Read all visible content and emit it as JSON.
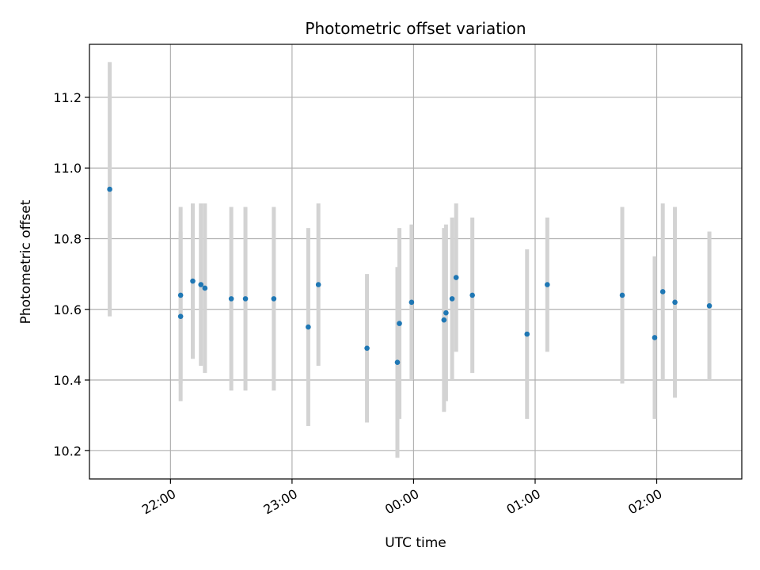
{
  "chart_data": {
    "type": "scatter",
    "title": "Photometric offset variation",
    "xlabel": "UTC time",
    "ylabel": "Photometric offset",
    "grid": true,
    "xlim": [
      "21:20",
      "02:42"
    ],
    "ylim": [
      10.12,
      11.35
    ],
    "xticks": [
      "22:00",
      "23:00",
      "00:00",
      "01:00",
      "02:00"
    ],
    "yticks": [
      "10.2",
      "10.4",
      "10.6",
      "10.8",
      "11.0",
      "11.2"
    ],
    "point_color": "#1f77b4",
    "errorbar_color": "#d3d3d3",
    "points": [
      {
        "x": "21:30",
        "y": 10.94,
        "err": 0.36
      },
      {
        "x": "22:05",
        "y": 10.58,
        "err": 0.24
      },
      {
        "x": "22:05",
        "y": 10.64,
        "err": 0.25
      },
      {
        "x": "22:11",
        "y": 10.68,
        "err": 0.22
      },
      {
        "x": "22:15",
        "y": 10.67,
        "err": 0.23
      },
      {
        "x": "22:17",
        "y": 10.66,
        "err": 0.24
      },
      {
        "x": "22:30",
        "y": 10.63,
        "err": 0.26
      },
      {
        "x": "22:37",
        "y": 10.63,
        "err": 0.26
      },
      {
        "x": "22:51",
        "y": 10.63,
        "err": 0.26
      },
      {
        "x": "23:08",
        "y": 10.55,
        "err": 0.28
      },
      {
        "x": "23:13",
        "y": 10.67,
        "err": 0.23
      },
      {
        "x": "23:37",
        "y": 10.49,
        "err": 0.21
      },
      {
        "x": "23:52",
        "y": 10.45,
        "err": 0.27
      },
      {
        "x": "23:53",
        "y": 10.56,
        "err": 0.27
      },
      {
        "x": "23:59",
        "y": 10.62,
        "err": 0.22
      },
      {
        "x": "00:15",
        "y": 10.57,
        "err": 0.26
      },
      {
        "x": "00:16",
        "y": 10.59,
        "err": 0.25
      },
      {
        "x": "00:19",
        "y": 10.63,
        "err": 0.23
      },
      {
        "x": "00:21",
        "y": 10.69,
        "err": 0.21
      },
      {
        "x": "00:29",
        "y": 10.64,
        "err": 0.22
      },
      {
        "x": "00:56",
        "y": 10.53,
        "err": 0.24
      },
      {
        "x": "01:06",
        "y": 10.67,
        "err": 0.19
      },
      {
        "x": "01:43",
        "y": 10.64,
        "err": 0.25
      },
      {
        "x": "01:59",
        "y": 10.52,
        "err": 0.23
      },
      {
        "x": "02:03",
        "y": 10.65,
        "err": 0.25
      },
      {
        "x": "02:09",
        "y": 10.62,
        "err": 0.27
      },
      {
        "x": "02:26",
        "y": 10.61,
        "err": 0.21
      }
    ]
  }
}
